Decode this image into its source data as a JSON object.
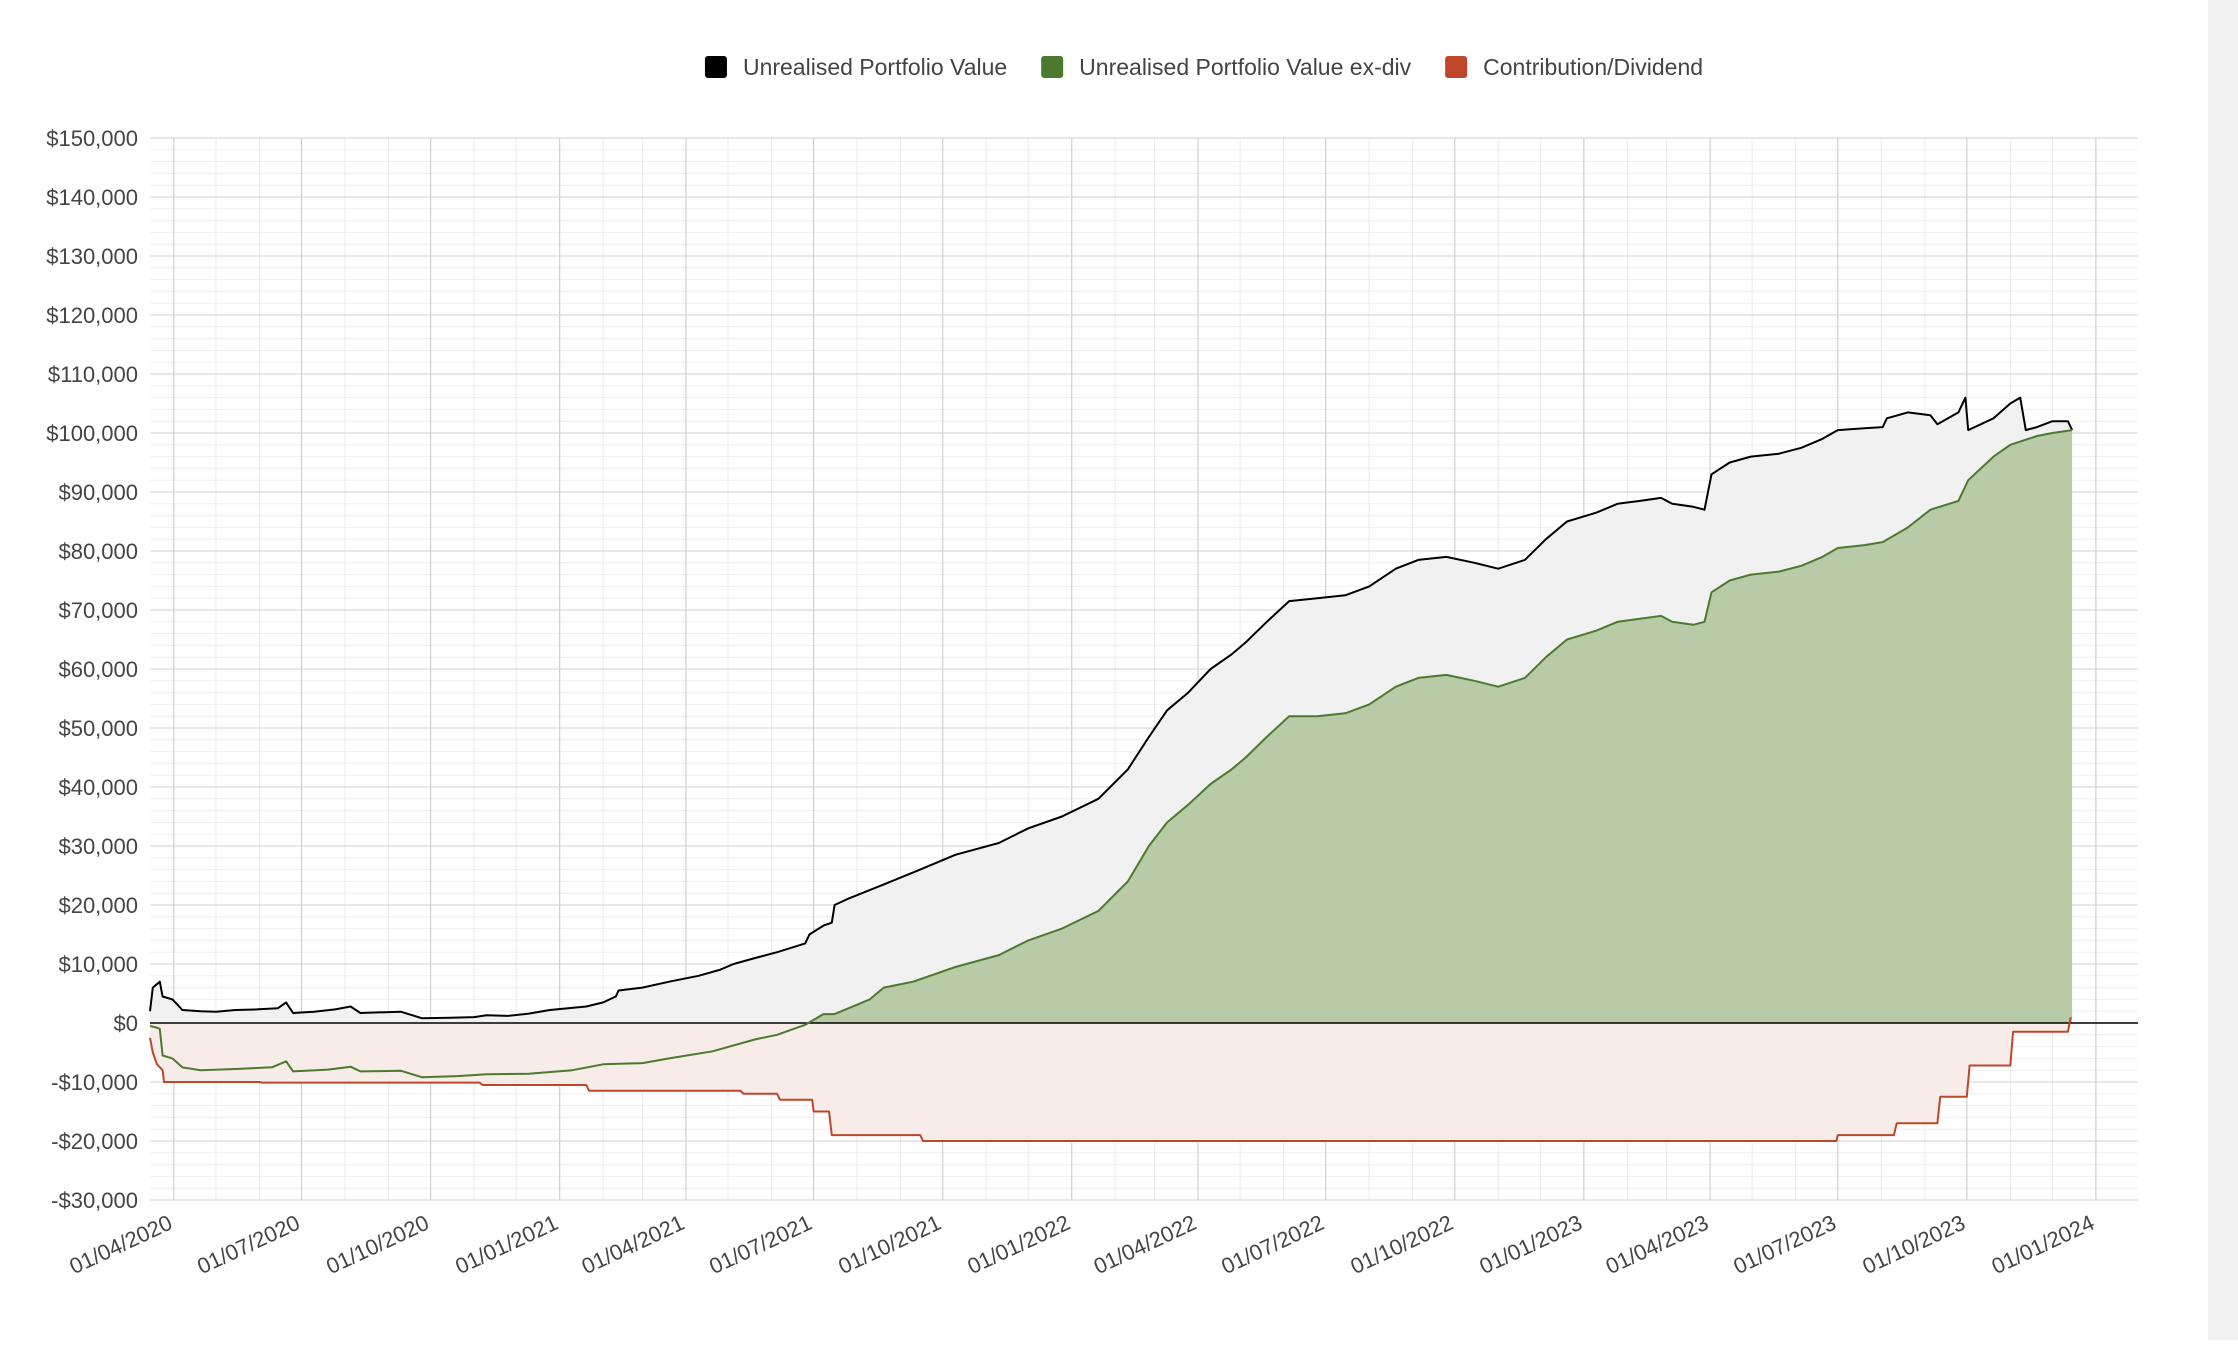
{
  "chart_data": {
    "type": "area",
    "title": "",
    "xlabel": "",
    "ylabel": "",
    "legend_position": "top-center",
    "grid": true,
    "xlim": [
      "2020-03-15",
      "2024-01-31"
    ],
    "ylim": [
      -30000,
      150000
    ],
    "y_ticks": [
      {
        "value": 150000,
        "label": "$150,000"
      },
      {
        "value": 140000,
        "label": "$140,000"
      },
      {
        "value": 130000,
        "label": "$130,000"
      },
      {
        "value": 120000,
        "label": "$120,000"
      },
      {
        "value": 110000,
        "label": "$110,000"
      },
      {
        "value": 100000,
        "label": "$100,000"
      },
      {
        "value": 90000,
        "label": "$90,000"
      },
      {
        "value": 80000,
        "label": "$80,000"
      },
      {
        "value": 70000,
        "label": "$70,000"
      },
      {
        "value": 60000,
        "label": "$60,000"
      },
      {
        "value": 50000,
        "label": "$50,000"
      },
      {
        "value": 40000,
        "label": "$40,000"
      },
      {
        "value": 30000,
        "label": "$30,000"
      },
      {
        "value": 20000,
        "label": "$20,000"
      },
      {
        "value": 10000,
        "label": "$10,000"
      },
      {
        "value": 0,
        "label": "$0"
      },
      {
        "value": -10000,
        "label": "-$10,000"
      },
      {
        "value": -20000,
        "label": "-$20,000"
      },
      {
        "value": -30000,
        "label": "-$30,000"
      }
    ],
    "x_ticks": [
      {
        "date": "2020-04-01",
        "label": "01/04/2020"
      },
      {
        "date": "2020-07-01",
        "label": "01/07/2020"
      },
      {
        "date": "2020-10-01",
        "label": "01/10/2020"
      },
      {
        "date": "2021-01-01",
        "label": "01/01/2021"
      },
      {
        "date": "2021-04-01",
        "label": "01/04/2021"
      },
      {
        "date": "2021-07-01",
        "label": "01/07/2021"
      },
      {
        "date": "2021-10-01",
        "label": "01/10/2021"
      },
      {
        "date": "2022-01-01",
        "label": "01/01/2022"
      },
      {
        "date": "2022-04-01",
        "label": "01/04/2022"
      },
      {
        "date": "2022-07-01",
        "label": "01/07/2022"
      },
      {
        "date": "2022-10-01",
        "label": "01/10/2022"
      },
      {
        "date": "2023-01-01",
        "label": "01/01/2023"
      },
      {
        "date": "2023-04-01",
        "label": "01/04/2023"
      },
      {
        "date": "2023-07-01",
        "label": "01/07/2023"
      },
      {
        "date": "2023-10-01",
        "label": "01/10/2023"
      },
      {
        "date": "2024-01-01",
        "label": "01/01/2024"
      }
    ],
    "series": [
      {
        "name": "Unrealised Portfolio Value",
        "color": "#000000",
        "fill": "#f1f1f1",
        "points": [
          [
            "2020-03-15",
            2000
          ],
          [
            "2020-03-17",
            6000
          ],
          [
            "2020-03-22",
            7000
          ],
          [
            "2020-03-24",
            4500
          ],
          [
            "2020-03-31",
            4000
          ],
          [
            "2020-04-04",
            3000
          ],
          [
            "2020-04-07",
            2200
          ],
          [
            "2020-04-20",
            2000
          ],
          [
            "2020-05-01",
            1900
          ],
          [
            "2020-05-15",
            2200
          ],
          [
            "2020-05-30",
            2300
          ],
          [
            "2020-06-14",
            2500
          ],
          [
            "2020-06-20",
            3500
          ],
          [
            "2020-06-25",
            1700
          ],
          [
            "2020-07-10",
            1900
          ],
          [
            "2020-07-25",
            2300
          ],
          [
            "2020-08-05",
            2800
          ],
          [
            "2020-08-12",
            1700
          ],
          [
            "2020-08-25",
            1800
          ],
          [
            "2020-09-10",
            1900
          ],
          [
            "2020-09-25",
            800
          ],
          [
            "2020-10-15",
            900
          ],
          [
            "2020-11-01",
            1000
          ],
          [
            "2020-11-10",
            1300
          ],
          [
            "2020-11-25",
            1200
          ],
          [
            "2020-12-10",
            1600
          ],
          [
            "2020-12-25",
            2200
          ],
          [
            "2021-01-20",
            2800
          ],
          [
            "2021-02-01",
            3500
          ],
          [
            "2021-02-10",
            4500
          ],
          [
            "2021-02-12",
            5500
          ],
          [
            "2021-03-01",
            6000
          ],
          [
            "2021-03-20",
            7000
          ],
          [
            "2021-04-10",
            8000
          ],
          [
            "2021-04-25",
            9000
          ],
          [
            "2021-05-05",
            10000
          ],
          [
            "2021-05-20",
            11000
          ],
          [
            "2021-06-05",
            12000
          ],
          [
            "2021-06-25",
            13500
          ],
          [
            "2021-06-28",
            15000
          ],
          [
            "2021-07-08",
            16500
          ],
          [
            "2021-07-14",
            17000
          ],
          [
            "2021-07-16",
            20000
          ],
          [
            "2021-07-25",
            21000
          ],
          [
            "2021-08-20",
            23500
          ],
          [
            "2021-09-15",
            26000
          ],
          [
            "2021-10-10",
            28500
          ],
          [
            "2021-11-10",
            30500
          ],
          [
            "2021-12-01",
            33000
          ],
          [
            "2021-12-25",
            35000
          ],
          [
            "2022-01-20",
            38000
          ],
          [
            "2022-02-10",
            43000
          ],
          [
            "2022-02-25",
            48500
          ],
          [
            "2022-03-10",
            53000
          ],
          [
            "2022-03-25",
            56000
          ],
          [
            "2022-04-10",
            60000
          ],
          [
            "2022-04-25",
            62500
          ],
          [
            "2022-05-05",
            64500
          ],
          [
            "2022-05-20",
            68000
          ],
          [
            "2022-06-05",
            71500
          ],
          [
            "2022-06-25",
            72000
          ],
          [
            "2022-07-15",
            72500
          ],
          [
            "2022-08-01",
            74000
          ],
          [
            "2022-08-20",
            77000
          ],
          [
            "2022-09-05",
            78500
          ],
          [
            "2022-09-25",
            79000
          ],
          [
            "2022-10-15",
            78000
          ],
          [
            "2022-11-01",
            77000
          ],
          [
            "2022-11-20",
            78500
          ],
          [
            "2022-12-05",
            82000
          ],
          [
            "2022-12-20",
            85000
          ],
          [
            "2023-01-10",
            86500
          ],
          [
            "2023-01-25",
            88000
          ],
          [
            "2023-02-10",
            88500
          ],
          [
            "2023-02-25",
            89000
          ],
          [
            "2023-03-05",
            88000
          ],
          [
            "2023-03-20",
            87500
          ],
          [
            "2023-03-28",
            87000
          ],
          [
            "2023-04-02",
            93000
          ],
          [
            "2023-04-15",
            95000
          ],
          [
            "2023-04-30",
            96000
          ],
          [
            "2023-05-20",
            96500
          ],
          [
            "2023-06-05",
            97500
          ],
          [
            "2023-06-20",
            99000
          ],
          [
            "2023-07-01",
            100500
          ],
          [
            "2023-07-20",
            100800
          ],
          [
            "2023-08-02",
            101000
          ],
          [
            "2023-08-05",
            102500
          ],
          [
            "2023-08-20",
            103500
          ],
          [
            "2023-09-05",
            103000
          ],
          [
            "2023-09-10",
            101500
          ],
          [
            "2023-09-25",
            103500
          ],
          [
            "2023-09-30",
            106000
          ],
          [
            "2023-10-02",
            100500
          ],
          [
            "2023-10-20",
            102500
          ],
          [
            "2023-11-01",
            105000
          ],
          [
            "2023-11-08",
            106000
          ],
          [
            "2023-11-12",
            100500
          ],
          [
            "2023-11-20",
            101000
          ],
          [
            "2023-12-01",
            102000
          ],
          [
            "2023-12-12",
            102000
          ],
          [
            "2023-12-15",
            100500
          ]
        ]
      },
      {
        "name": "Unrealised Portfolio Value ex-div",
        "color": "#4b7a2e",
        "fill": "#b5c7a2",
        "points": [
          [
            "2020-03-15",
            -500
          ],
          [
            "2020-03-20",
            -800
          ],
          [
            "2020-03-22",
            -1000
          ],
          [
            "2020-03-24",
            -5500
          ],
          [
            "2020-03-31",
            -6000
          ],
          [
            "2020-04-07",
            -7500
          ],
          [
            "2020-04-20",
            -8000
          ],
          [
            "2020-05-15",
            -7800
          ],
          [
            "2020-06-10",
            -7500
          ],
          [
            "2020-06-20",
            -6500
          ],
          [
            "2020-06-25",
            -8200
          ],
          [
            "2020-07-20",
            -7900
          ],
          [
            "2020-08-05",
            -7400
          ],
          [
            "2020-08-12",
            -8200
          ],
          [
            "2020-09-10",
            -8100
          ],
          [
            "2020-09-25",
            -9200
          ],
          [
            "2020-10-20",
            -9000
          ],
          [
            "2020-11-10",
            -8700
          ],
          [
            "2020-12-10",
            -8600
          ],
          [
            "2021-01-10",
            -8000
          ],
          [
            "2021-02-01",
            -7000
          ],
          [
            "2021-03-01",
            -6800
          ],
          [
            "2021-03-20",
            -6000
          ],
          [
            "2021-04-20",
            -4800
          ],
          [
            "2021-05-20",
            -2800
          ],
          [
            "2021-06-05",
            -2000
          ],
          [
            "2021-06-25",
            -300
          ],
          [
            "2021-07-08",
            1500
          ],
          [
            "2021-07-16",
            1500
          ],
          [
            "2021-08-10",
            4000
          ],
          [
            "2021-08-20",
            6000
          ],
          [
            "2021-09-10",
            7000
          ],
          [
            "2021-10-10",
            9500
          ],
          [
            "2021-11-10",
            11500
          ],
          [
            "2021-12-01",
            14000
          ],
          [
            "2021-12-25",
            16000
          ],
          [
            "2022-01-20",
            19000
          ],
          [
            "2022-02-10",
            24000
          ],
          [
            "2022-02-25",
            30000
          ],
          [
            "2022-03-10",
            34000
          ],
          [
            "2022-03-25",
            37000
          ],
          [
            "2022-04-10",
            40500
          ],
          [
            "2022-04-25",
            43000
          ],
          [
            "2022-05-05",
            45000
          ],
          [
            "2022-05-20",
            48500
          ],
          [
            "2022-06-05",
            52000
          ],
          [
            "2022-06-25",
            52000
          ],
          [
            "2022-07-15",
            52500
          ],
          [
            "2022-08-01",
            54000
          ],
          [
            "2022-08-20",
            57000
          ],
          [
            "2022-09-05",
            58500
          ],
          [
            "2022-09-25",
            59000
          ],
          [
            "2022-10-15",
            58000
          ],
          [
            "2022-11-01",
            57000
          ],
          [
            "2022-11-20",
            58500
          ],
          [
            "2022-12-05",
            62000
          ],
          [
            "2022-12-20",
            65000
          ],
          [
            "2023-01-10",
            66500
          ],
          [
            "2023-01-25",
            68000
          ],
          [
            "2023-02-10",
            68500
          ],
          [
            "2023-02-25",
            69000
          ],
          [
            "2023-03-05",
            68000
          ],
          [
            "2023-03-20",
            67500
          ],
          [
            "2023-03-28",
            68000
          ],
          [
            "2023-04-02",
            73000
          ],
          [
            "2023-04-15",
            75000
          ],
          [
            "2023-04-30",
            76000
          ],
          [
            "2023-05-20",
            76500
          ],
          [
            "2023-06-05",
            77500
          ],
          [
            "2023-06-20",
            79000
          ],
          [
            "2023-07-01",
            80500
          ],
          [
            "2023-07-20",
            81000
          ],
          [
            "2023-08-02",
            81500
          ],
          [
            "2023-08-20",
            84000
          ],
          [
            "2023-09-05",
            87000
          ],
          [
            "2023-09-25",
            88500
          ],
          [
            "2023-10-02",
            92000
          ],
          [
            "2023-10-20",
            96000
          ],
          [
            "2023-11-01",
            98000
          ],
          [
            "2023-11-20",
            99500
          ],
          [
            "2023-12-01",
            100000
          ],
          [
            "2023-12-15",
            100500
          ]
        ]
      },
      {
        "name": "Contribution/Dividend",
        "color": "#c0462a",
        "fill": "#f7ece8",
        "points": [
          [
            "2020-03-15",
            -2500
          ],
          [
            "2020-03-17",
            -5000
          ],
          [
            "2020-03-20",
            -7000
          ],
          [
            "2020-03-24",
            -8000
          ],
          [
            "2020-03-25",
            -10000
          ],
          [
            "2020-06-01",
            -10000
          ],
          [
            "2020-06-03",
            -10100
          ],
          [
            "2020-11-05",
            -10100
          ],
          [
            "2020-11-07",
            -10500
          ],
          [
            "2021-01-20",
            -10500
          ],
          [
            "2021-01-22",
            -11500
          ],
          [
            "2021-05-10",
            -11500
          ],
          [
            "2021-05-12",
            -12000
          ],
          [
            "2021-06-05",
            -12000
          ],
          [
            "2021-06-07",
            -13000
          ],
          [
            "2021-06-30",
            -13000
          ],
          [
            "2021-07-01",
            -15000
          ],
          [
            "2021-07-12",
            -15000
          ],
          [
            "2021-07-14",
            -19000
          ],
          [
            "2021-09-15",
            -19000
          ],
          [
            "2021-09-17",
            -20000
          ],
          [
            "2023-06-30",
            -20000
          ],
          [
            "2023-07-01",
            -19000
          ],
          [
            "2023-08-10",
            -19000
          ],
          [
            "2023-08-12",
            -17000
          ],
          [
            "2023-09-10",
            -17000
          ],
          [
            "2023-09-12",
            -12500
          ],
          [
            "2023-10-01",
            -12500
          ],
          [
            "2023-10-03",
            -7200
          ],
          [
            "2023-11-01",
            -7200
          ],
          [
            "2023-11-03",
            -1500
          ],
          [
            "2023-12-12",
            -1500
          ],
          [
            "2023-12-14",
            1000
          ]
        ]
      }
    ]
  }
}
